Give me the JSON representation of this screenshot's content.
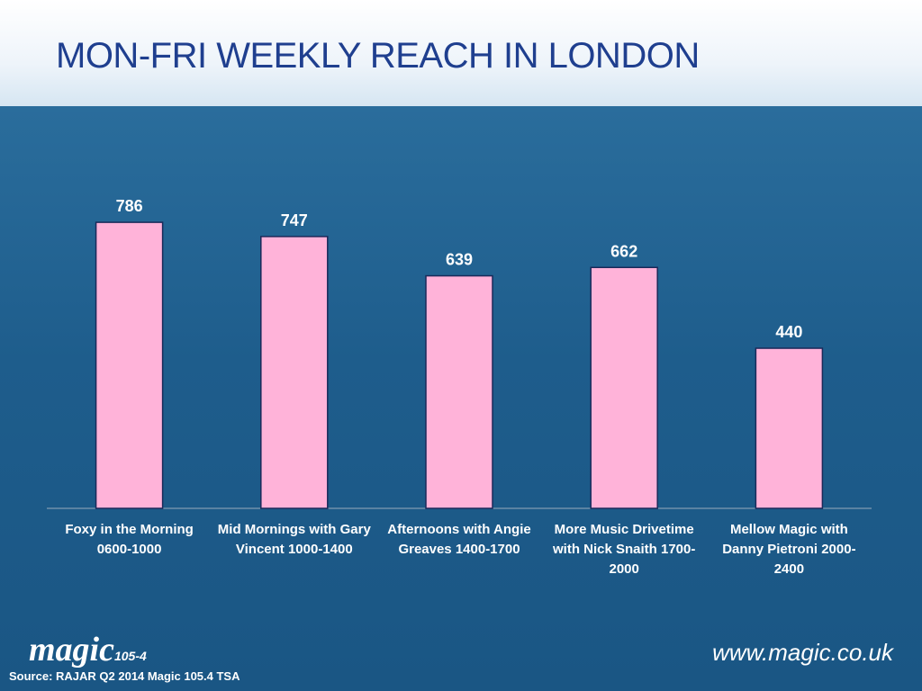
{
  "chart_data": {
    "type": "bar",
    "title": "MON-FRI WEEKLY REACH IN LONDON",
    "categories": [
      "Foxy in the Morning 0600-1000",
      "Mid Mornings with Gary Vincent 1000-1400",
      "Afternoons with Angie Greaves 1400-1700",
      "More Music Drivetime with Nick Snaith 1700-2000",
      "Mellow Magic with Danny Pietroni 2000-2400"
    ],
    "values": [
      786,
      747,
      639,
      662,
      440
    ],
    "color": "#ffb3d9",
    "ylim": [
      0,
      900
    ],
    "grid": false
  },
  "footer": {
    "logo": "magic",
    "logo_sub": "105-4",
    "website": "www.magic.co.uk",
    "source": "Source: RAJAR Q2 2014 Magic 105.4 TSA"
  }
}
